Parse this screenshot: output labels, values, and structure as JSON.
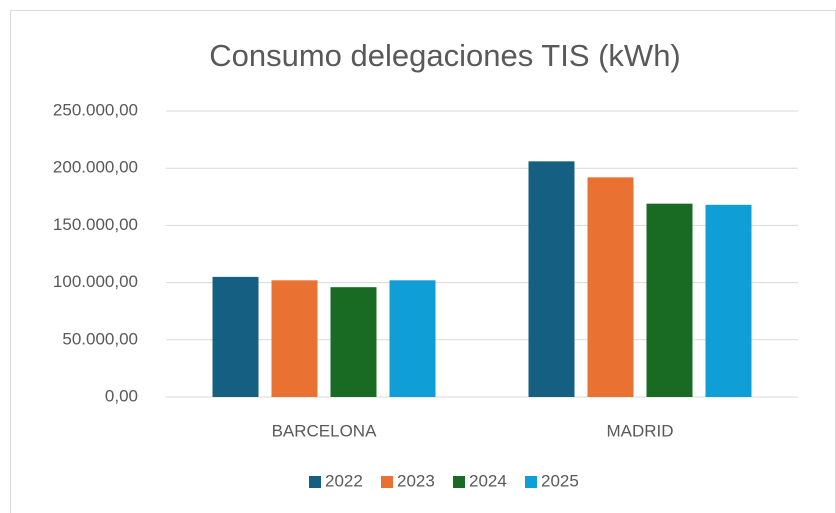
{
  "chart_data": {
    "type": "bar",
    "title": "Consumo delegaciones TIS (kWh)",
    "categories": [
      "BARCELONA",
      "MADRID"
    ],
    "series": [
      {
        "name": "2022",
        "color": "#156082",
        "values": [
          105000,
          206000
        ]
      },
      {
        "name": "2023",
        "color": "#e97132",
        "values": [
          102000,
          192000
        ]
      },
      {
        "name": "2024",
        "color": "#196b24",
        "values": [
          96000,
          169000
        ]
      },
      {
        "name": "2025",
        "color": "#0f9ed5",
        "values": [
          102000,
          168000
        ]
      }
    ],
    "ylim": [
      0,
      250000
    ],
    "yticks": [
      {
        "value": 0,
        "label": "0,00"
      },
      {
        "value": 50000,
        "label": "50.000,00"
      },
      {
        "value": 100000,
        "label": "100.000,00"
      },
      {
        "value": 150000,
        "label": "150.000,00"
      },
      {
        "value": 200000,
        "label": "200.000,00"
      },
      {
        "value": 250000,
        "label": "250.000,00"
      }
    ],
    "grid": true,
    "legend": "bottom"
  }
}
